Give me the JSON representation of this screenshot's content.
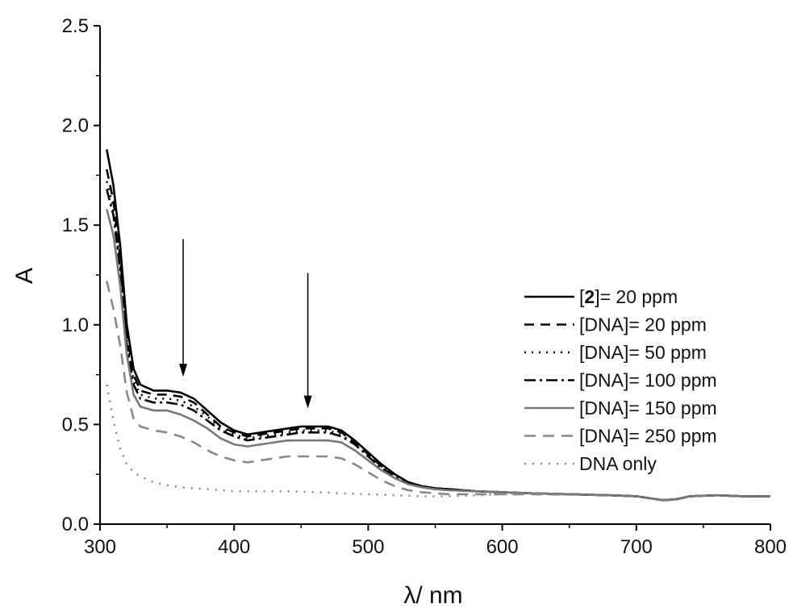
{
  "chart_data": {
    "type": "line",
    "title": "",
    "xlabel": "λ/ nm",
    "ylabel": "A",
    "xlim": [
      300,
      800
    ],
    "ylim": [
      0,
      2.5
    ],
    "xticks": [
      "300",
      "400",
      "500",
      "600",
      "700",
      "800"
    ],
    "yticks": [
      "0.0",
      "0.5",
      "1.0",
      "1.5",
      "2.0",
      "2.5"
    ],
    "grid": false,
    "legend_position": "right",
    "annotations": [
      {
        "type": "arrow",
        "x": 362,
        "y_from": 1.43,
        "y_to": 0.74,
        "direction": "down"
      },
      {
        "type": "arrow",
        "x": 455,
        "y_from": 1.26,
        "y_to": 0.58,
        "direction": "down"
      }
    ],
    "series": [
      {
        "name_prefix": "[",
        "name_bold": "2",
        "name_suffix": "]= 20 ppm",
        "color": "#000000",
        "dash": "",
        "width": 2.6,
        "x": [
          305,
          310,
          315,
          320,
          325,
          330,
          340,
          350,
          360,
          370,
          380,
          390,
          400,
          410,
          420,
          430,
          440,
          450,
          460,
          470,
          480,
          490,
          500,
          510,
          520,
          530,
          540,
          550,
          560,
          580,
          600,
          620,
          650,
          680,
          700,
          710,
          720,
          730,
          740,
          760,
          780,
          800
        ],
        "y": [
          1.88,
          1.7,
          1.4,
          1.0,
          0.78,
          0.7,
          0.67,
          0.67,
          0.66,
          0.63,
          0.57,
          0.51,
          0.47,
          0.45,
          0.46,
          0.47,
          0.48,
          0.49,
          0.49,
          0.49,
          0.47,
          0.42,
          0.36,
          0.3,
          0.25,
          0.21,
          0.19,
          0.18,
          0.175,
          0.165,
          0.16,
          0.155,
          0.15,
          0.145,
          0.14,
          0.13,
          0.12,
          0.125,
          0.14,
          0.145,
          0.14,
          0.14
        ]
      },
      {
        "name": "[DNA]= 20 ppm",
        "color": "#000000",
        "dash": "12,8",
        "width": 2.6,
        "x": [
          305,
          310,
          315,
          320,
          325,
          330,
          340,
          350,
          360,
          370,
          380,
          390,
          400,
          410,
          420,
          430,
          440,
          450,
          460,
          470,
          480,
          490,
          500,
          510,
          520,
          530,
          540,
          550,
          560,
          580,
          600,
          620,
          650,
          680,
          700,
          710,
          720,
          730,
          740,
          760,
          780,
          800
        ],
        "y": [
          1.78,
          1.62,
          1.34,
          0.95,
          0.75,
          0.67,
          0.65,
          0.65,
          0.64,
          0.61,
          0.55,
          0.49,
          0.46,
          0.44,
          0.45,
          0.46,
          0.47,
          0.48,
          0.48,
          0.48,
          0.46,
          0.41,
          0.35,
          0.29,
          0.25,
          0.21,
          0.19,
          0.18,
          0.175,
          0.165,
          0.16,
          0.155,
          0.15,
          0.145,
          0.14,
          0.13,
          0.12,
          0.125,
          0.14,
          0.145,
          0.14,
          0.14
        ]
      },
      {
        "name": "[DNA]= 50 ppm",
        "color": "#000000",
        "dash": "2,7",
        "width": 2.6,
        "x": [
          305,
          310,
          315,
          320,
          325,
          330,
          340,
          350,
          360,
          370,
          380,
          390,
          400,
          410,
          420,
          430,
          440,
          450,
          460,
          470,
          480,
          490,
          500,
          510,
          520,
          530,
          540,
          550,
          560,
          580,
          600,
          620,
          650,
          680,
          700,
          710,
          720,
          730,
          740,
          760,
          780,
          800
        ],
        "y": [
          1.72,
          1.58,
          1.3,
          0.92,
          0.72,
          0.65,
          0.63,
          0.63,
          0.62,
          0.59,
          0.54,
          0.48,
          0.45,
          0.43,
          0.44,
          0.45,
          0.46,
          0.47,
          0.47,
          0.47,
          0.45,
          0.4,
          0.35,
          0.29,
          0.24,
          0.21,
          0.19,
          0.18,
          0.175,
          0.165,
          0.16,
          0.155,
          0.15,
          0.145,
          0.14,
          0.13,
          0.12,
          0.125,
          0.14,
          0.145,
          0.14,
          0.14
        ]
      },
      {
        "name": "[DNA]= 100 ppm",
        "color": "#000000",
        "dash": "14,5,3,5",
        "width": 2.6,
        "x": [
          305,
          310,
          315,
          320,
          325,
          330,
          340,
          350,
          360,
          370,
          380,
          390,
          400,
          410,
          420,
          430,
          440,
          450,
          460,
          470,
          480,
          490,
          500,
          510,
          520,
          530,
          540,
          550,
          560,
          580,
          600,
          620,
          650,
          680,
          700,
          710,
          720,
          730,
          740,
          760,
          780,
          800
        ],
        "y": [
          1.68,
          1.55,
          1.28,
          0.9,
          0.7,
          0.63,
          0.61,
          0.61,
          0.6,
          0.57,
          0.52,
          0.47,
          0.44,
          0.42,
          0.43,
          0.44,
          0.45,
          0.46,
          0.46,
          0.46,
          0.44,
          0.4,
          0.34,
          0.28,
          0.24,
          0.21,
          0.19,
          0.18,
          0.175,
          0.165,
          0.16,
          0.155,
          0.15,
          0.145,
          0.14,
          0.13,
          0.12,
          0.125,
          0.14,
          0.145,
          0.14,
          0.14
        ]
      },
      {
        "name": "[DNA]= 150 ppm",
        "color": "#777777",
        "dash": "",
        "width": 2.6,
        "x": [
          305,
          310,
          315,
          320,
          325,
          330,
          340,
          350,
          360,
          370,
          380,
          390,
          400,
          410,
          420,
          430,
          440,
          450,
          460,
          470,
          480,
          490,
          500,
          510,
          520,
          530,
          540,
          550,
          560,
          580,
          600,
          620,
          650,
          680,
          700,
          710,
          720,
          730,
          740,
          760,
          780,
          800
        ],
        "y": [
          1.58,
          1.45,
          1.2,
          0.85,
          0.65,
          0.59,
          0.57,
          0.57,
          0.55,
          0.52,
          0.48,
          0.43,
          0.4,
          0.39,
          0.4,
          0.41,
          0.42,
          0.42,
          0.42,
          0.42,
          0.41,
          0.37,
          0.32,
          0.27,
          0.23,
          0.2,
          0.185,
          0.175,
          0.17,
          0.165,
          0.16,
          0.155,
          0.15,
          0.145,
          0.14,
          0.13,
          0.12,
          0.125,
          0.14,
          0.145,
          0.14,
          0.14
        ]
      },
      {
        "name": "[DNA]= 250 ppm",
        "color": "#888888",
        "dash": "14,9",
        "width": 2.6,
        "x": [
          305,
          310,
          315,
          320,
          325,
          330,
          340,
          350,
          360,
          370,
          380,
          390,
          400,
          410,
          420,
          430,
          440,
          450,
          460,
          470,
          480,
          490,
          500,
          510,
          520,
          530,
          540,
          550,
          560,
          580,
          600,
          620,
          650
        ],
        "y": [
          1.22,
          1.08,
          0.9,
          0.66,
          0.53,
          0.49,
          0.47,
          0.46,
          0.44,
          0.41,
          0.37,
          0.34,
          0.32,
          0.31,
          0.32,
          0.33,
          0.34,
          0.34,
          0.34,
          0.34,
          0.33,
          0.3,
          0.26,
          0.22,
          0.19,
          0.17,
          0.16,
          0.155,
          0.15,
          0.15,
          0.15,
          0.15,
          0.148
        ]
      },
      {
        "name": "DNA only",
        "color": "#888888",
        "dash": "2,8",
        "width": 2.6,
        "x": [
          305,
          310,
          315,
          320,
          325,
          330,
          340,
          350,
          360,
          370,
          380,
          390,
          400,
          420,
          440,
          460,
          480,
          500,
          520,
          540,
          560,
          580,
          600,
          620
        ],
        "y": [
          0.7,
          0.52,
          0.38,
          0.3,
          0.26,
          0.24,
          0.21,
          0.195,
          0.185,
          0.18,
          0.175,
          0.17,
          0.165,
          0.165,
          0.165,
          0.16,
          0.155,
          0.15,
          0.145,
          0.14,
          0.14,
          0.145,
          0.15,
          0.15
        ]
      }
    ]
  }
}
